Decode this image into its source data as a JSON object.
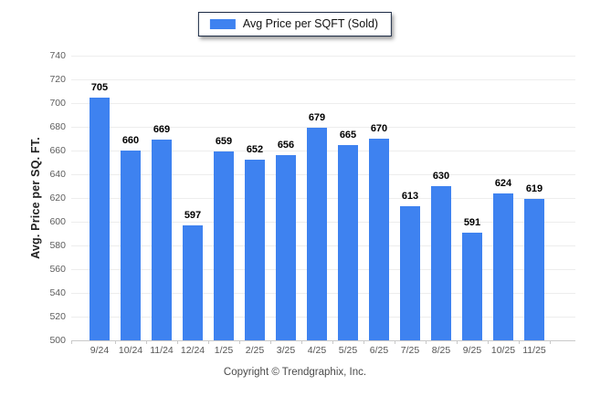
{
  "legend": {
    "label": "Avg Price per SQFT (Sold)",
    "swatch_color": "#3E82F0"
  },
  "chart_data": {
    "type": "bar",
    "title": "",
    "categories": [
      "9/24",
      "10/24",
      "11/24",
      "12/24",
      "1/25",
      "2/25",
      "3/25",
      "4/25",
      "5/25",
      "6/25",
      "7/25",
      "8/25",
      "9/25",
      "10/25",
      "11/25"
    ],
    "values": [
      705,
      660,
      669,
      597,
      659,
      652,
      656,
      679,
      665,
      670,
      613,
      630,
      591,
      624,
      619
    ],
    "xlabel": "",
    "ylabel": "Avg. Price per SQ. FT.",
    "ylim": [
      500,
      740
    ],
    "ytick_step": 20,
    "grid": true,
    "legend_position": "top-center",
    "bar_color": "#3E82F0",
    "value_labels_shown": true,
    "gridline_color": "#ededed",
    "axis_line_color": "#c9c9c9"
  },
  "footer": {
    "text": "Copyright © Trendgraphix, Inc."
  }
}
